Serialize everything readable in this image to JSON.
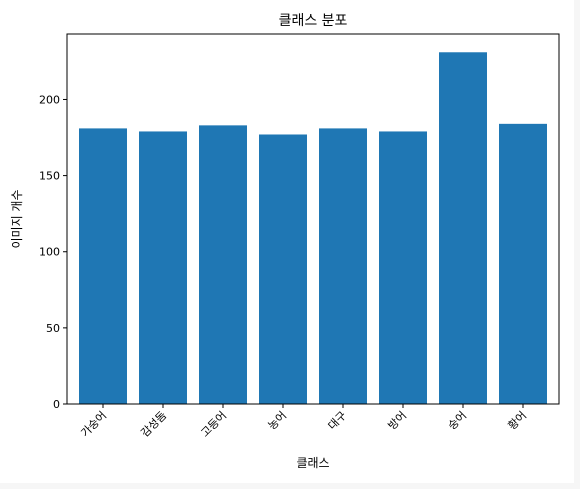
{
  "chart_data": {
    "type": "bar",
    "title": "클래스 분포",
    "xlabel": "클래스",
    "ylabel": "이미지 개수",
    "categories": [
      "가숭어",
      "감성돔",
      "고등어",
      "농어",
      "대구",
      "방어",
      "숭어",
      "황어"
    ],
    "values": [
      181,
      179,
      183,
      177,
      181,
      179,
      231,
      184
    ],
    "ylim": [
      0,
      243
    ],
    "yticks": [
      0,
      50,
      100,
      150,
      200
    ],
    "bar_color": "#1f77b4",
    "grid": false
  }
}
